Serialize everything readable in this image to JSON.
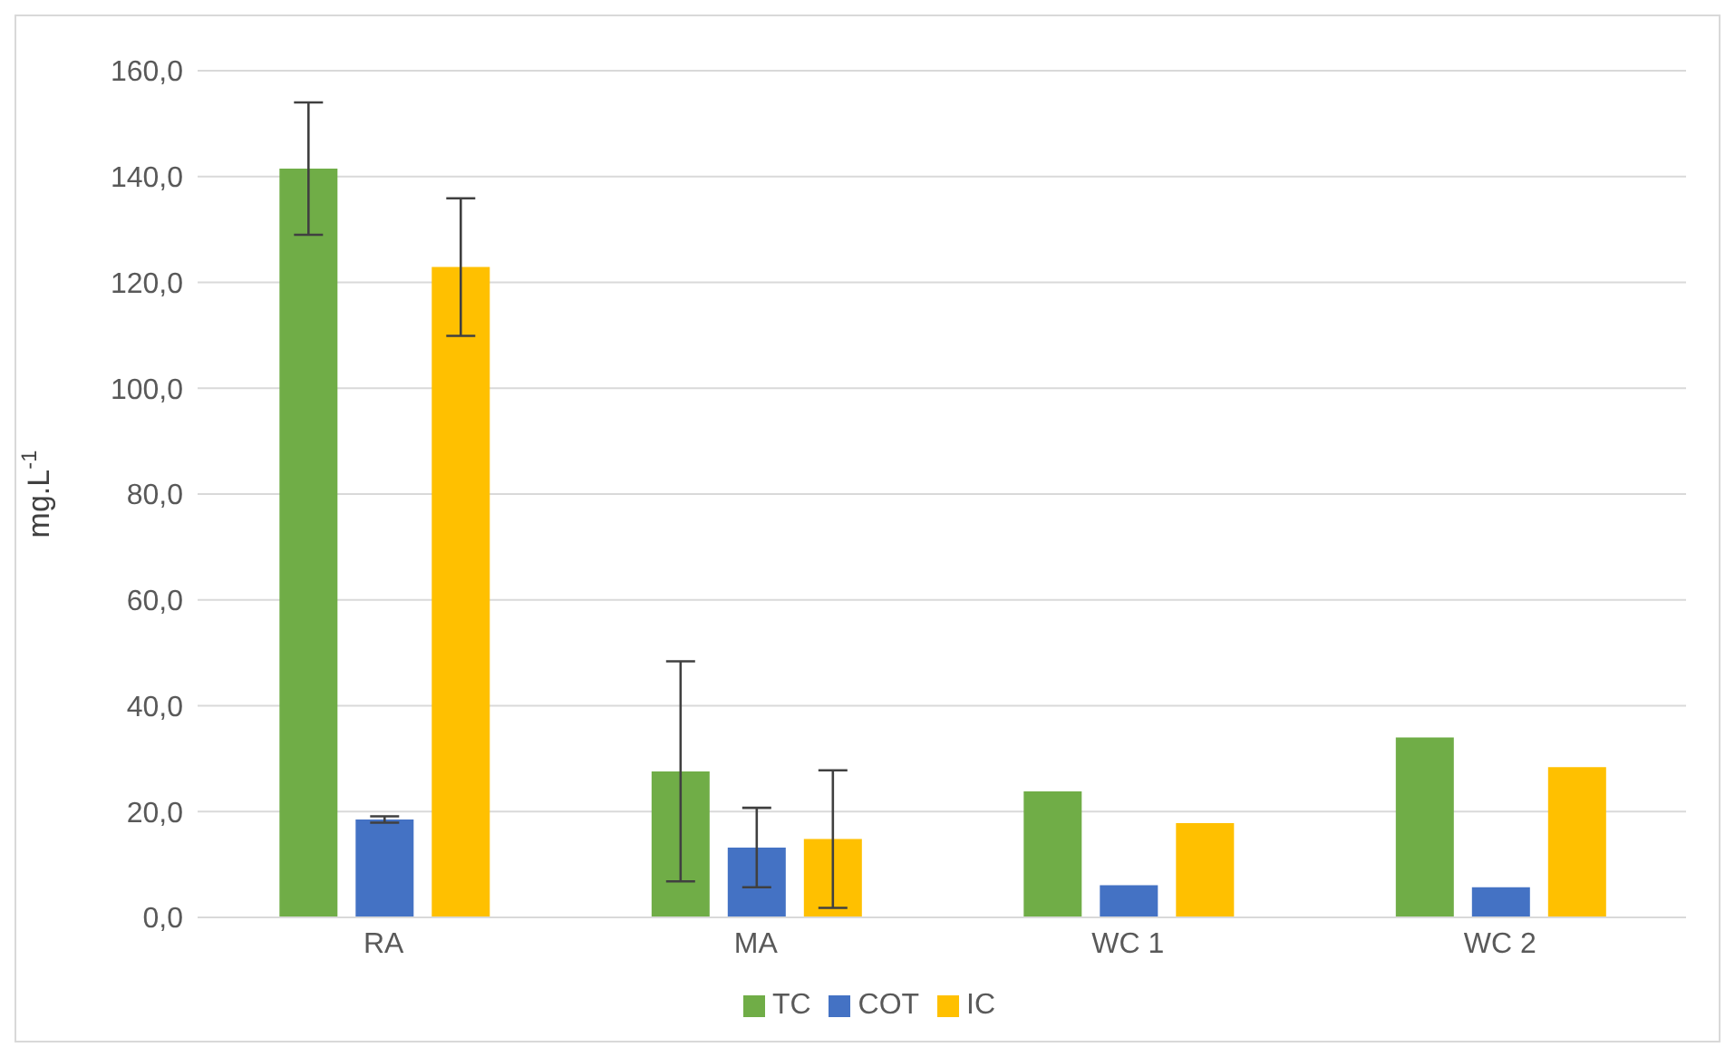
{
  "chart_data": {
    "type": "bar",
    "ylabel": "mg.L$^{-1}$",
    "categories": [
      "RA",
      "MA",
      "WC 1",
      "WC 2"
    ],
    "series": [
      {
        "name": "TC",
        "color": "#70ad47",
        "values": [
          141.5,
          27.6,
          23.8,
          34.0
        ],
        "errors": [
          12.5,
          20.8,
          null,
          null
        ]
      },
      {
        "name": "COT",
        "color": "#4472c4",
        "values": [
          18.5,
          13.2,
          6.1,
          5.7
        ],
        "errors": [
          0.6,
          7.5,
          null,
          null
        ]
      },
      {
        "name": "IC",
        "color": "#ffc000",
        "values": [
          122.9,
          14.8,
          17.8,
          28.4
        ],
        "errors": [
          13,
          13,
          null,
          null
        ]
      }
    ],
    "ylim": [
      0,
      160
    ],
    "yticks": [
      {
        "value": 0,
        "label": "0,0"
      },
      {
        "value": 20,
        "label": "20,0"
      },
      {
        "value": 40,
        "label": "40,0"
      },
      {
        "value": 60,
        "label": "60,0"
      },
      {
        "value": 80,
        "label": "80,0"
      },
      {
        "value": 100,
        "label": "100,0"
      },
      {
        "value": 120,
        "label": "120,0"
      },
      {
        "value": 140,
        "label": "140,0"
      },
      {
        "value": 160,
        "label": "160,0"
      }
    ],
    "grid": "y",
    "legend": "bottom"
  }
}
